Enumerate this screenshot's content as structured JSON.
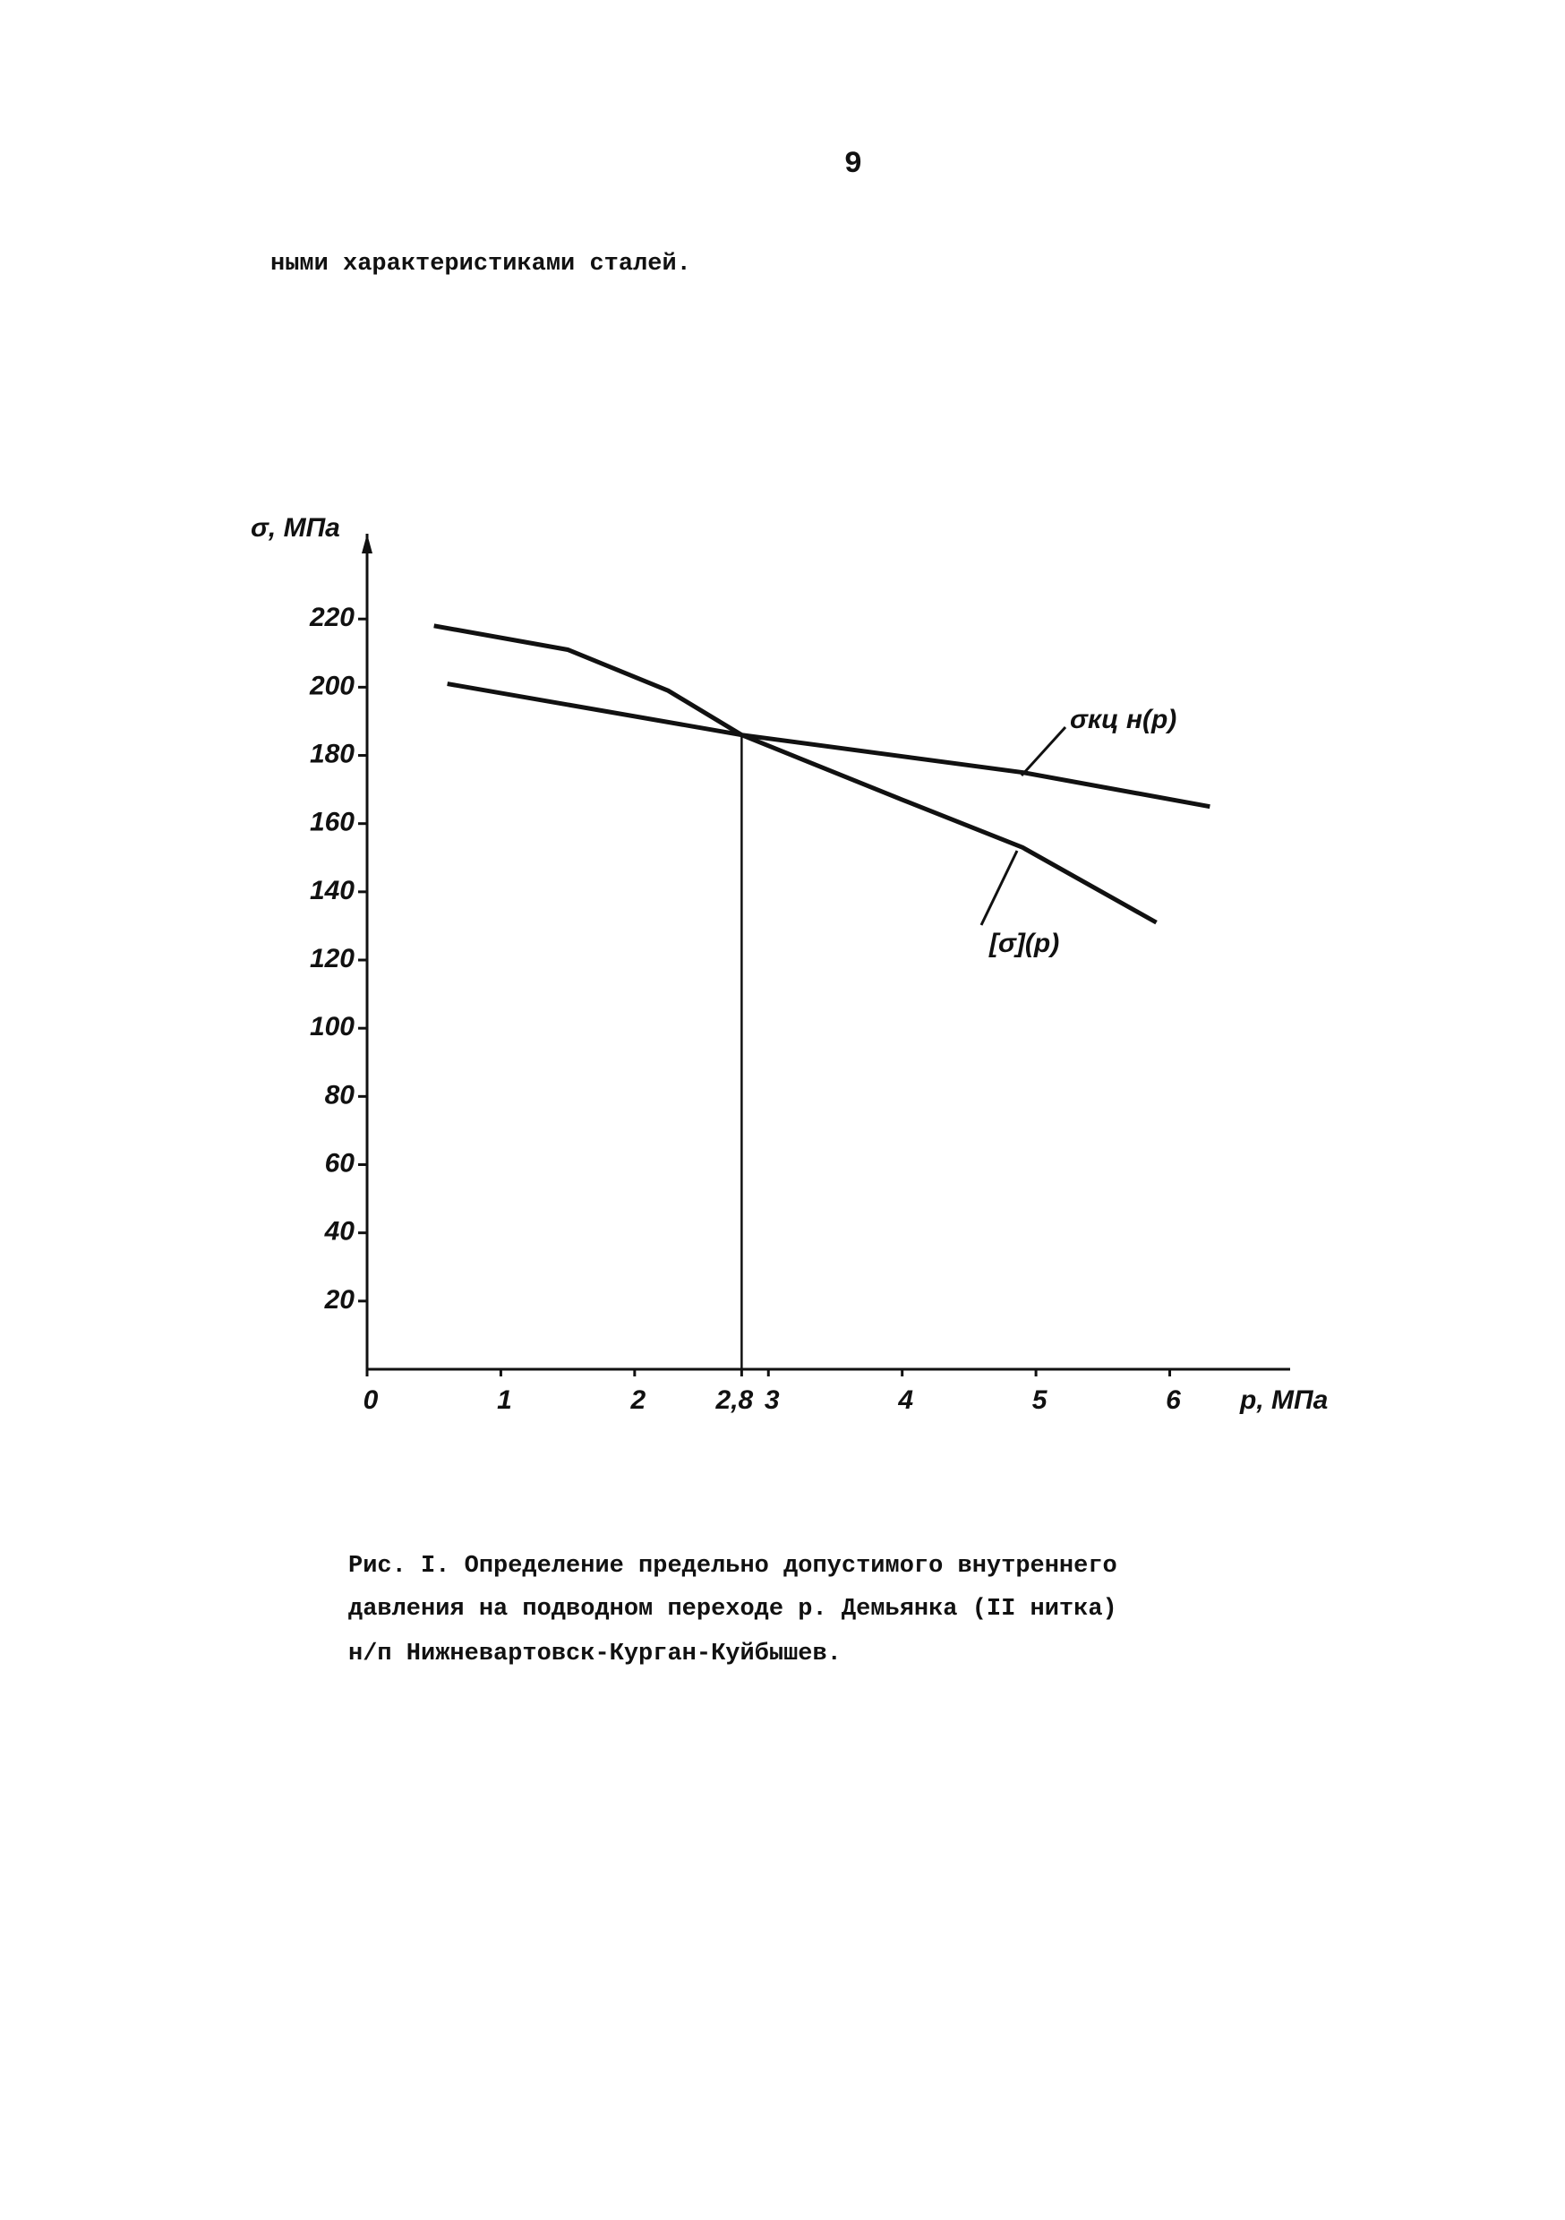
{
  "page_number": "9",
  "text_line": "ными характеристиками сталей.",
  "chart_data": {
    "type": "line",
    "y_label": "σ, МПа",
    "x_label": "p, МПа",
    "xlim": [
      0,
      6.9
    ],
    "ylim": [
      0,
      245
    ],
    "xticks": [
      0,
      1,
      2,
      {
        "value": 2.8,
        "label": "2,8"
      },
      3,
      4,
      5,
      6
    ],
    "yticks": [
      20,
      40,
      60,
      80,
      100,
      120,
      140,
      160,
      180,
      200,
      220
    ],
    "series": [
      {
        "name": "σкц н(p)",
        "color": "#111111",
        "x": [
          0.6,
          2.8,
          4.9,
          6.3
        ],
        "values": [
          201,
          186,
          175,
          165
        ]
      },
      {
        "name": "[σ](p)",
        "color": "#111111",
        "x": [
          0.5,
          1.5,
          2.25,
          2.8,
          4,
          4.9,
          5.9
        ],
        "values": [
          218,
          211,
          199,
          186,
          167,
          153,
          131
        ]
      }
    ]
  },
  "caption": [
    "Рис. I. Определение предельно допустимого внутреннего",
    "давления на подводном переходе р. Демьянка (II нитка)",
    "н/п Нижневартовск-Курган-Куйбышев."
  ]
}
